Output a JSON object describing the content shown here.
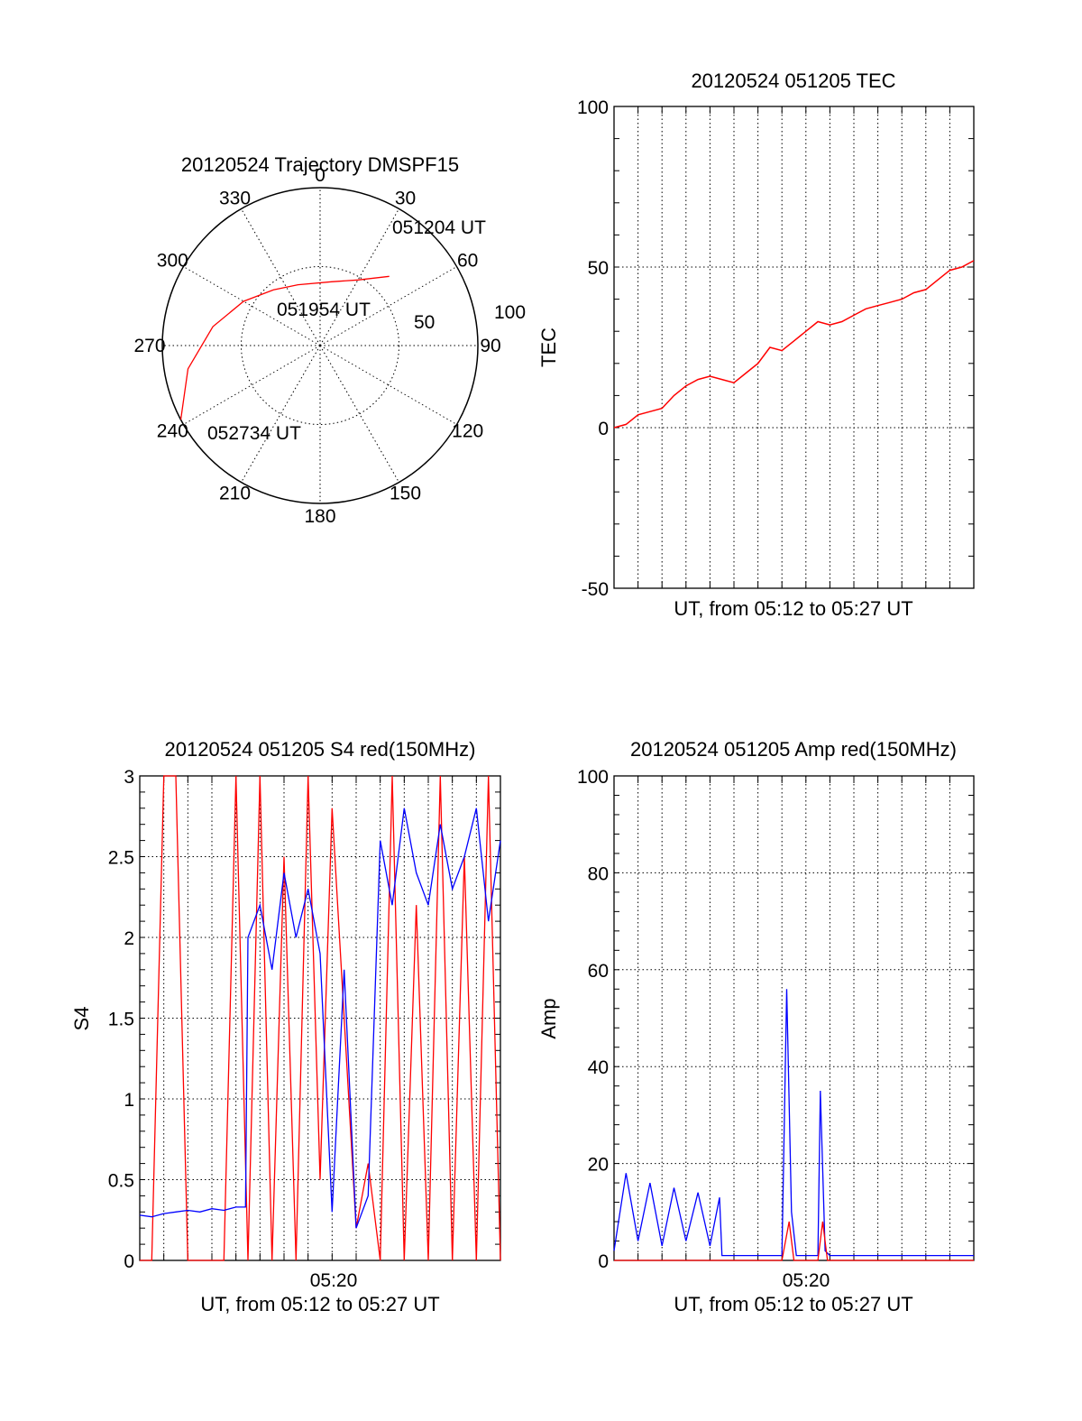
{
  "chart_data": [
    {
      "type": "polar",
      "title": "20120524 Trajectory DMSPF15",
      "azimuth_ticks": [
        "0",
        "30",
        "60",
        "90",
        "120",
        "150",
        "180",
        "210",
        "240",
        "270",
        "300",
        "330"
      ],
      "radial_ticks": [
        "50",
        "100"
      ],
      "trajectory": [
        {
          "az": 45,
          "r": 62
        },
        {
          "az": 30,
          "r": 48
        },
        {
          "az": 10,
          "r": 41
        },
        {
          "az": -20,
          "r": 41
        },
        {
          "az": -40,
          "r": 46
        },
        {
          "az": -60,
          "r": 56
        },
        {
          "az": -80,
          "r": 69
        },
        {
          "az": -100,
          "r": 85
        },
        {
          "az": -118,
          "r": 100
        }
      ],
      "annotations": [
        "051204 UT",
        "051954 UT",
        "052734 UT"
      ],
      "colors": {
        "trajectory": "#ff0000"
      }
    },
    {
      "type": "line",
      "title": "20120524 051205 TEC",
      "xlabel": "UT, from 05:12 to 05:27 UT",
      "ylabel": "TEC",
      "xlim": [
        0,
        15
      ],
      "ylim": [
        -50,
        100
      ],
      "y_ticks": [
        "-50",
        "0",
        "50",
        "100"
      ],
      "grid": true,
      "series": [
        {
          "color": "#ff0000",
          "x": [
            0,
            0.5,
            1,
            1.5,
            2,
            2.5,
            3,
            3.5,
            4,
            4.5,
            5,
            5.5,
            6,
            6.5,
            7,
            7.5,
            8,
            8.5,
            9,
            9.5,
            10,
            10.5,
            11,
            11.5,
            12,
            12.5,
            13,
            13.5,
            14,
            14.5,
            15
          ],
          "y": [
            0,
            1,
            4,
            5,
            6,
            10,
            13,
            15,
            16,
            15,
            14,
            17,
            20,
            25,
            24,
            27,
            30,
            33,
            32,
            33,
            35,
            37,
            38,
            39,
            40,
            42,
            43,
            46,
            49,
            50,
            52
          ]
        }
      ]
    },
    {
      "type": "line",
      "title": "20120524 051205 S4 red(150MHz)",
      "xlabel": "UT, from 05:12 to 05:27 UT",
      "ylabel": "S4",
      "xlim": [
        0,
        15
      ],
      "ylim": [
        0,
        3
      ],
      "x_ticks": [
        "05:20"
      ],
      "y_ticks": [
        "0",
        "0.5",
        "1",
        "1.5",
        "2",
        "2.5",
        "3"
      ],
      "grid": true,
      "series": [
        {
          "color": "#0000ff",
          "x": [
            0,
            0.5,
            1,
            1.5,
            2,
            2.5,
            3,
            3.5,
            4,
            4.4,
            4.5,
            5,
            5.5,
            6,
            6.5,
            7,
            7.5,
            8,
            8.5,
            9,
            9.5,
            10,
            10.5,
            11,
            11.5,
            12,
            12.5,
            13,
            13.5,
            14,
            14.5,
            15
          ],
          "y": [
            0.28,
            0.27,
            0.29,
            0.3,
            0.31,
            0.3,
            0.32,
            0.31,
            0.33,
            0.33,
            2.0,
            2.2,
            1.8,
            2.4,
            2.0,
            2.3,
            1.9,
            0.3,
            1.8,
            0.2,
            0.4,
            2.6,
            2.2,
            2.8,
            2.4,
            2.2,
            2.7,
            2.3,
            2.5,
            2.8,
            2.1,
            2.6
          ]
        },
        {
          "color": "#ff0000",
          "x": [
            0,
            0.5,
            1,
            1.5,
            2,
            2.5,
            3,
            3.5,
            4,
            4.5,
            5,
            5.5,
            6,
            6.5,
            7,
            7.5,
            8,
            8.5,
            9,
            9.5,
            10,
            10.5,
            11,
            11.5,
            12,
            12.5,
            13,
            13.5,
            14,
            14.5,
            15
          ],
          "y": [
            0,
            0,
            3,
            3,
            0,
            0,
            0,
            0,
            3,
            0,
            3,
            0,
            2.5,
            0,
            3,
            0.5,
            2.8,
            1.5,
            0.2,
            0.6,
            0,
            3,
            0,
            2.2,
            0,
            3,
            0,
            2.5,
            0,
            3,
            0
          ]
        }
      ]
    },
    {
      "type": "line",
      "title": "20120524 051205 Amp red(150MHz)",
      "xlabel": "UT, from 05:12 to 05:27 UT",
      "ylabel": "Amp",
      "xlim": [
        0,
        15
      ],
      "ylim": [
        0,
        100
      ],
      "x_ticks": [
        "05:20"
      ],
      "y_ticks": [
        "0",
        "20",
        "40",
        "60",
        "80",
        "100"
      ],
      "grid": true,
      "series": [
        {
          "color": "#0000ff",
          "x": [
            0,
            0.5,
            1,
            1.5,
            2,
            2.5,
            3,
            3.5,
            4,
            4.4,
            4.5,
            5,
            5.5,
            6,
            6.5,
            7,
            7.2,
            7.4,
            7.6,
            8,
            8.5,
            8.6,
            8.8,
            9,
            9.5,
            10,
            10.5,
            11,
            11.5,
            12,
            12.5,
            13,
            13.5,
            14,
            14.5,
            15
          ],
          "y": [
            2,
            18,
            4,
            16,
            3,
            15,
            4,
            14,
            3,
            13,
            1,
            1,
            1,
            1,
            1,
            1,
            56,
            10,
            1,
            1,
            1,
            35,
            2,
            1,
            1,
            1,
            1,
            1,
            1,
            1,
            1,
            1,
            1,
            1,
            1,
            1
          ]
        },
        {
          "color": "#ff0000",
          "x": [
            0,
            4.4,
            7,
            7.3,
            7.5,
            8.5,
            8.7,
            8.9,
            15
          ],
          "y": [
            0,
            0,
            0,
            8,
            0,
            0,
            8,
            0,
            0
          ]
        }
      ]
    }
  ]
}
